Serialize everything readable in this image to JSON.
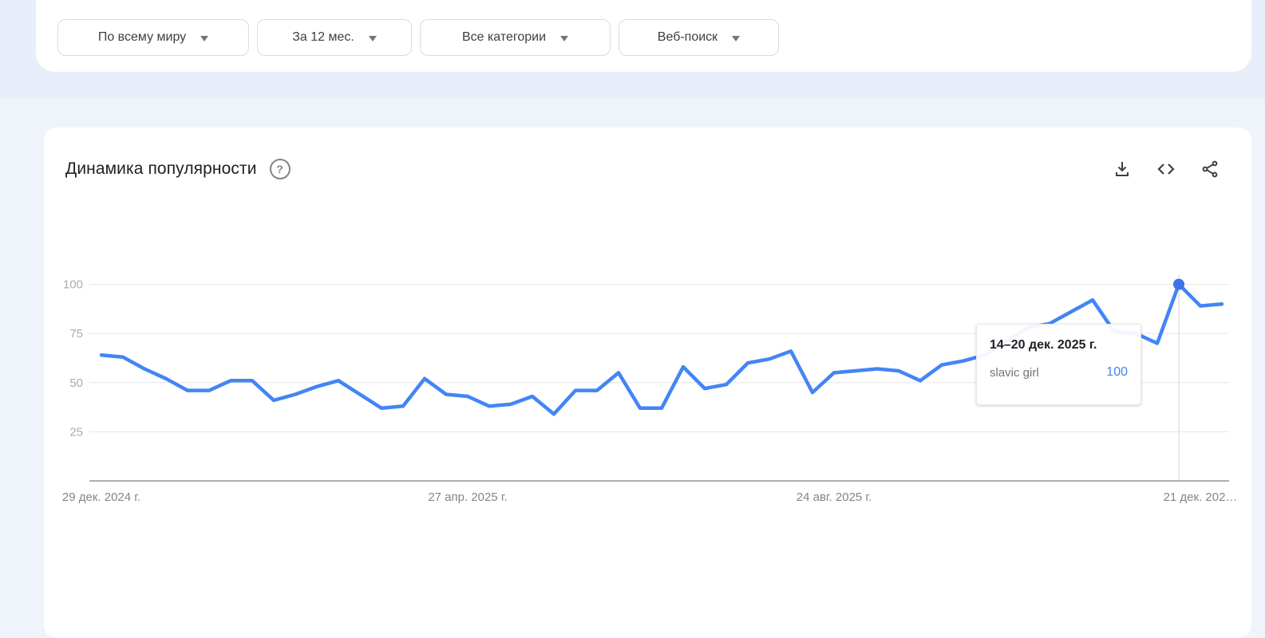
{
  "filters": [
    {
      "label": "По всему миру"
    },
    {
      "label": "За 12 мес."
    },
    {
      "label": "Все категории"
    },
    {
      "label": "Веб-поиск"
    }
  ],
  "panel": {
    "title": "Динамика популярности",
    "icons": {
      "help": "help-icon",
      "download": "download-icon",
      "embed": "embed-code-icon",
      "share": "share-icon"
    }
  },
  "tooltip": {
    "date": "14–20 дек. 2025 г.",
    "term": "slavic girl",
    "value": "100"
  },
  "chart_data": {
    "type": "line",
    "title": "Динамика популярности",
    "series": [
      {
        "name": "slavic girl",
        "values": [
          64,
          63,
          57,
          52,
          46,
          46,
          51,
          51,
          41,
          44,
          48,
          51,
          44,
          37,
          38,
          52,
          44,
          43,
          38,
          39,
          43,
          34,
          46,
          46,
          55,
          37,
          37,
          58,
          47,
          49,
          60,
          62,
          66,
          45,
          55,
          56,
          57,
          56,
          51,
          59,
          61,
          64,
          71,
          78,
          80,
          86,
          92,
          76,
          75,
          70,
          100,
          89,
          90
        ]
      }
    ],
    "x_unit": "week",
    "x_tick_labels": [
      "29 дек. 2024 г.",
      "27 апр. 2025 г.",
      "24 авг. 2025 г.",
      "21 дек. 202…"
    ],
    "x_tick_indices": [
      0,
      17,
      34,
      51
    ],
    "y_ticks": [
      25,
      50,
      75,
      100
    ],
    "ylim": [
      0,
      100
    ],
    "grid": "horizontal",
    "legend_position": "none",
    "highlight": {
      "index": 50,
      "value": 100,
      "label": "14–20 дек. 2025 г."
    },
    "line_color": "#4285f4",
    "dot_color": "#3e73e8",
    "grid_color": "#e6e6e6",
    "axis_color": "#8f9398",
    "tick_label_color": "#a8adb3",
    "x_label_color": "#80868b"
  }
}
